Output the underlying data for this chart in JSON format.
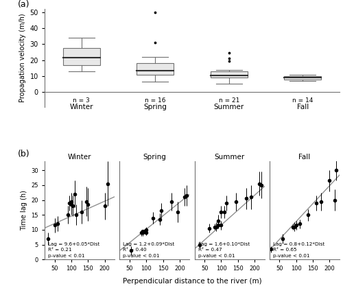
{
  "boxplot": {
    "seasons": [
      "Winter",
      "Spring",
      "Summer",
      "Fall"
    ],
    "n_labels": [
      "n = 3",
      "n = 16",
      "n = 21",
      "n = 14"
    ],
    "winter": {
      "median": 21.5,
      "q1": 17.0,
      "q3": 27.5,
      "whisker_low": 13.0,
      "whisker_high": 34.0,
      "fliers": []
    },
    "spring": {
      "median": 13.5,
      "q1": 11.0,
      "q3": 18.0,
      "whisker_low": 6.5,
      "whisker_high": 22.0,
      "fliers": [
        31.0,
        50.0
      ]
    },
    "summer": {
      "median": 10.5,
      "q1": 9.0,
      "q3": 13.0,
      "whisker_low": 5.5,
      "whisker_high": 14.0,
      "fliers": [
        19.5,
        21.0,
        24.5
      ]
    },
    "fall": {
      "median": 9.0,
      "q1": 8.0,
      "q3": 10.0,
      "whisker_low": 7.0,
      "whisker_high": 11.0,
      "fliers": []
    },
    "ylabel": "Propagation velocity (m/h)",
    "ylim": [
      0,
      52
    ]
  },
  "scatter": {
    "ylabel": "Time lag (h)",
    "xlabel": "Perpendicular distance to the river (m)",
    "xlim": [
      20,
      230
    ],
    "ylim": [
      0,
      33
    ],
    "seasons": [
      "Winter",
      "Spring",
      "Summer",
      "Fall"
    ],
    "winter": {
      "x": [
        30,
        50,
        60,
        90,
        95,
        100,
        100,
        105,
        110,
        115,
        130,
        145,
        150,
        200,
        210
      ],
      "y": [
        7.0,
        11.5,
        12.0,
        15.0,
        19.0,
        18.5,
        19.5,
        18.0,
        22.0,
        15.0,
        16.0,
        19.5,
        18.5,
        18.0,
        25.5
      ],
      "yerr": [
        2.0,
        2.5,
        2.5,
        3.0,
        2.5,
        3.5,
        3.0,
        3.5,
        4.5,
        3.5,
        4.0,
        5.0,
        5.5,
        4.5,
        7.5
      ],
      "eq": "Lag = 9.6+0.05*Dist",
      "r2": "R² = 0.21",
      "pval": "p-value < 0.01",
      "slope": 0.05,
      "intercept": 9.6
    },
    "spring": {
      "x": [
        55,
        85,
        90,
        90,
        95,
        100,
        100,
        120,
        140,
        145,
        175,
        195,
        215,
        220
      ],
      "y": [
        3.0,
        9.0,
        9.0,
        9.5,
        9.5,
        9.0,
        10.0,
        14.0,
        13.5,
        16.5,
        19.5,
        16.0,
        21.0,
        21.5
      ],
      "yerr": [
        1.5,
        1.0,
        1.0,
        0.5,
        0.8,
        0.8,
        1.0,
        2.0,
        2.0,
        2.5,
        3.0,
        3.5,
        3.0,
        3.5
      ],
      "eq": "Lag = 1.2+0.09*Dist",
      "r2": "R² = 0.40",
      "pval": "p-value < 0.01",
      "slope": 0.09,
      "intercept": 1.2
    },
    "summer": {
      "x": [
        35,
        65,
        80,
        85,
        90,
        90,
        100,
        100,
        110,
        115,
        145,
        175,
        190,
        215,
        220
      ],
      "y": [
        5.0,
        10.5,
        11.0,
        11.0,
        11.5,
        13.0,
        11.5,
        16.0,
        16.0,
        19.0,
        19.5,
        20.5,
        21.0,
        25.5,
        25.0
      ],
      "yerr": [
        1.0,
        1.5,
        1.0,
        1.5,
        1.0,
        2.0,
        1.5,
        2.0,
        2.0,
        2.5,
        3.0,
        3.5,
        4.0,
        4.0,
        4.5
      ],
      "eq": "Lag = 1.6+0.10*Dist",
      "r2": "R² = 0.47",
      "pval": "p-value < 0.01",
      "slope": 0.1,
      "intercept": 1.6
    },
    "fall": {
      "x": [
        25,
        60,
        90,
        95,
        100,
        110,
        135,
        160,
        175,
        200,
        215,
        220
      ],
      "y": [
        3.5,
        7.0,
        11.0,
        11.0,
        11.5,
        12.0,
        15.0,
        19.0,
        19.5,
        26.5,
        20.0,
        30.0
      ],
      "yerr": [
        1.0,
        1.5,
        1.0,
        1.5,
        1.5,
        1.5,
        2.0,
        2.5,
        3.0,
        3.5,
        3.5,
        3.5
      ],
      "eq": "Lag = 0.8+0.12*Dist",
      "r2": "R² = 0.65",
      "pval": "p-value < 0.01",
      "slope": 0.12,
      "intercept": 0.8
    }
  },
  "box_color": "#b0b0b0",
  "line_color": "#909090",
  "scatter_color": "#000000",
  "bg_color": "#ffffff"
}
